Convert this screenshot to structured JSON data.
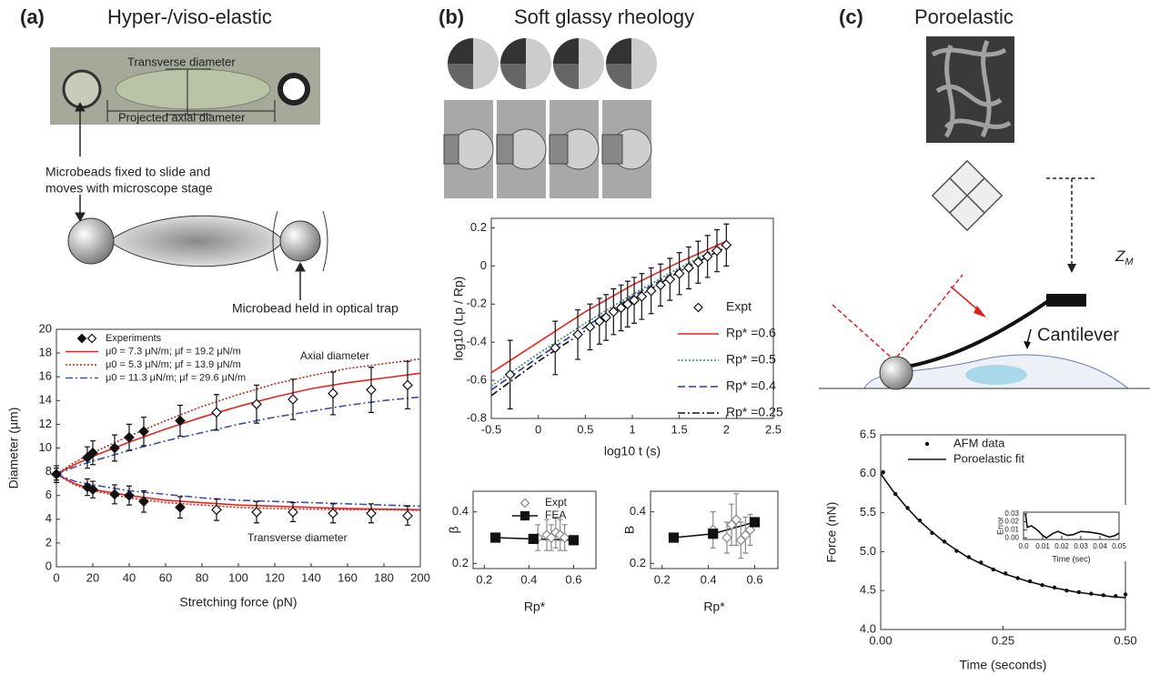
{
  "panels": [
    {
      "label": "(a)",
      "title": "Hyper-/viso-elastic"
    },
    {
      "label": "(b)",
      "title": "Soft glassy rheology"
    },
    {
      "label": "(c)",
      "title": "Poroelastic"
    }
  ],
  "annotations": {
    "transverse": "Transverse diameter",
    "projected": "Projected axial diameter",
    "beads_fixed_1": "Microbeads fixed to slide and",
    "beads_fixed_2": "moves with microscope stage",
    "bead_trap": "Microbead held in optical trap",
    "zm": "Z",
    "zm_sub": "M",
    "cantilever": "Cantilever"
  },
  "chart_data": [
    {
      "type": "line",
      "xlabel": "Stretching force (pN)",
      "ylabel": "Diameter (µm)",
      "xlim": [
        0,
        200
      ],
      "xticks": [
        0,
        20,
        40,
        60,
        80,
        100,
        120,
        140,
        160,
        180,
        200
      ],
      "ylim": [
        0,
        20
      ],
      "yticks": [
        0,
        2,
        4,
        6,
        8,
        10,
        12,
        14,
        16,
        18,
        20
      ],
      "annotations": [
        "Axial diameter",
        "Transverse diameter"
      ],
      "series": [
        {
          "name": "Experiments",
          "color": "#111111",
          "marker": "diamond",
          "fill": "filled",
          "x": [
            0,
            17,
            20,
            32,
            40,
            48,
            68
          ],
          "values": [
            7.8,
            9.2,
            9.6,
            10.0,
            10.9,
            11.4,
            12.3
          ],
          "errors": [
            0.7,
            0.9,
            1.0,
            1.1,
            1.1,
            1.2,
            1.3
          ]
        },
        {
          "color": "#111111",
          "marker": "diamond",
          "fill": "open",
          "x": [
            88,
            110,
            130,
            152,
            173,
            193
          ],
          "values": [
            13.0,
            13.7,
            14.1,
            14.6,
            14.9,
            15.3
          ],
          "errors": [
            1.5,
            1.6,
            1.7,
            1.8,
            1.9,
            2.0
          ]
        },
        {
          "color": "#111111",
          "marker": "diamond",
          "fill": "filled",
          "x": [
            0,
            17,
            20,
            32,
            40,
            48,
            68
          ],
          "values": [
            7.8,
            6.7,
            6.5,
            6.1,
            6.0,
            5.5,
            5.0
          ],
          "errors": [
            0.5,
            0.7,
            0.7,
            0.8,
            0.8,
            0.9,
            0.9
          ]
        },
        {
          "color": "#111111",
          "marker": "diamond",
          "fill": "open",
          "x": [
            88,
            110,
            130,
            152,
            173,
            193
          ],
          "values": [
            4.8,
            4.6,
            4.6,
            4.5,
            4.5,
            4.3
          ],
          "errors": [
            0.9,
            0.9,
            0.8,
            0.8,
            0.8,
            0.8
          ]
        },
        {
          "name": "μ0 = 7.3 μN/m; μf = 19.2 μN/m",
          "color": "#e8231f",
          "dash": "solid",
          "marker": "none",
          "x": [
            0,
            10,
            20,
            40,
            60,
            80,
            100,
            120,
            140,
            160,
            180,
            200
          ],
          "values": [
            7.8,
            8.6,
            9.3,
            10.5,
            11.6,
            12.6,
            13.5,
            14.3,
            15.0,
            15.5,
            15.9,
            16.3
          ]
        },
        {
          "name": "μ0 = 5.3 μN/m; μf = 13.9 μN/m",
          "color": "#c0261c",
          "dash": "dotted",
          "marker": "none",
          "x": [
            0,
            10,
            20,
            40,
            60,
            80,
            100,
            120,
            140,
            160,
            180,
            200
          ],
          "values": [
            7.8,
            8.8,
            9.6,
            11.0,
            12.3,
            13.5,
            14.5,
            15.4,
            16.1,
            16.7,
            17.1,
            17.5
          ]
        },
        {
          "name": "μ0 = 11.3 μN/m; μf = 29.6 μN/m",
          "color": "#3b4fb0",
          "dash": "dashdot",
          "marker": "none",
          "x": [
            0,
            10,
            20,
            40,
            60,
            80,
            100,
            120,
            140,
            160,
            180,
            200
          ],
          "values": [
            7.8,
            8.4,
            8.9,
            9.8,
            10.6,
            11.3,
            12.0,
            12.6,
            13.1,
            13.6,
            14.0,
            14.3
          ]
        },
        {
          "color": "#e8231f",
          "dash": "solid",
          "marker": "none",
          "x": [
            0,
            10,
            20,
            40,
            60,
            80,
            100,
            120,
            140,
            160,
            180,
            200
          ],
          "values": [
            7.8,
            7.0,
            6.5,
            6.0,
            5.6,
            5.4,
            5.2,
            5.1,
            5.0,
            4.9,
            4.85,
            4.8
          ]
        },
        {
          "color": "#c0261c",
          "dash": "dotted",
          "marker": "none",
          "x": [
            0,
            10,
            20,
            40,
            60,
            80,
            100,
            120,
            140,
            160,
            180,
            200
          ],
          "values": [
            7.8,
            6.9,
            6.4,
            5.8,
            5.4,
            5.2,
            5.0,
            4.9,
            4.85,
            4.8,
            4.8,
            4.75
          ]
        },
        {
          "color": "#3b4fb0",
          "dash": "dashdot",
          "marker": "none",
          "x": [
            0,
            10,
            20,
            40,
            60,
            80,
            100,
            120,
            140,
            160,
            180,
            200
          ],
          "values": [
            7.8,
            7.2,
            6.9,
            6.4,
            6.1,
            5.8,
            5.6,
            5.5,
            5.4,
            5.3,
            5.2,
            5.1
          ]
        }
      ]
    },
    {
      "type": "line",
      "xlabel": "log10 t (s)",
      "ylabel": "log10 (Lp / Rp)",
      "xlim": [
        -0.5,
        2.5
      ],
      "xticks": [
        -0.5,
        0,
        0.5,
        1,
        1.5,
        2,
        2.5
      ],
      "ylim": [
        -0.8,
        0.25
      ],
      "yticks": [
        -0.8,
        -0.6,
        -0.4,
        -0.2,
        0,
        0.2
      ],
      "series": [
        {
          "name": "Expt",
          "color": "#111111",
          "marker": "diamond",
          "fill": "open",
          "x": [
            -0.3,
            0.18,
            0.42,
            0.55,
            0.65,
            0.72,
            0.8,
            0.88,
            0.95,
            1.02,
            1.1,
            1.2,
            1.3,
            1.4,
            1.5,
            1.6,
            1.7,
            1.8,
            1.9,
            2.0
          ],
          "values": [
            -0.57,
            -0.43,
            -0.36,
            -0.32,
            -0.29,
            -0.27,
            -0.24,
            -0.22,
            -0.2,
            -0.18,
            -0.16,
            -0.13,
            -0.1,
            -0.07,
            -0.04,
            -0.01,
            0.02,
            0.05,
            0.08,
            0.11
          ],
          "errors": [
            0.18,
            0.14,
            0.13,
            0.12,
            0.12,
            0.12,
            0.12,
            0.12,
            0.12,
            0.12,
            0.12,
            0.12,
            0.11,
            0.11,
            0.11,
            0.11,
            0.11,
            0.11,
            0.11,
            0.11
          ]
        },
        {
          "name": "Rp* =0.6",
          "color": "#e8231f",
          "dash": "solid",
          "marker": "none",
          "x": [
            -0.5,
            0,
            0.5,
            1,
            1.5,
            2
          ],
          "values": [
            -0.56,
            -0.4,
            -0.24,
            -0.1,
            0.02,
            0.13
          ]
        },
        {
          "name": "Rp* =0.5",
          "color": "#3a8a6a",
          "dash": "dotted",
          "marker": "none",
          "x": [
            -0.5,
            0,
            0.5,
            1,
            1.5,
            2
          ],
          "values": [
            -0.63,
            -0.46,
            -0.3,
            -0.15,
            -0.01,
            0.12
          ]
        },
        {
          "name": "Rp* =0.4",
          "color": "#2a3a9a",
          "dash": "dashed",
          "marker": "none",
          "x": [
            -0.5,
            0,
            0.5,
            1,
            1.5,
            2
          ],
          "values": [
            -0.65,
            -0.48,
            -0.32,
            -0.16,
            -0.02,
            0.11
          ]
        },
        {
          "name": "Rp* =0.25",
          "color": "#111111",
          "dash": "dashdot",
          "marker": "none",
          "x": [
            -0.5,
            0,
            0.5,
            1,
            1.5,
            2
          ],
          "values": [
            -0.68,
            -0.5,
            -0.34,
            -0.18,
            -0.03,
            0.1
          ]
        }
      ]
    },
    {
      "type": "line",
      "xlabel": "Rp*",
      "ylabel": "β",
      "xlim": [
        0.15,
        0.7
      ],
      "xticks": [
        0.2,
        0.4,
        0.6
      ],
      "ylim": [
        0.18,
        0.48
      ],
      "yticks": [
        0.2,
        0.4
      ],
      "series": [
        {
          "name": "Expt",
          "color": "#888888",
          "marker": "diamond",
          "fill": "open",
          "x": [
            0.44,
            0.48,
            0.5,
            0.52,
            0.54,
            0.56
          ],
          "values": [
            0.3,
            0.31,
            0.3,
            0.32,
            0.31,
            0.3
          ],
          "errors": [
            0.05,
            0.06,
            0.05,
            0.06,
            0.06,
            0.05
          ]
        },
        {
          "name": "FEA",
          "color": "#111111",
          "dash": "solid",
          "marker": "square",
          "fill": "filled",
          "x": [
            0.25,
            0.42,
            0.6
          ],
          "values": [
            0.3,
            0.295,
            0.29
          ]
        }
      ]
    },
    {
      "type": "line",
      "xlabel": "Rp*",
      "ylabel": "B",
      "xlim": [
        0.15,
        0.7
      ],
      "xticks": [
        0.2,
        0.4,
        0.6
      ],
      "ylim": [
        0.18,
        0.48
      ],
      "yticks": [
        0.2,
        0.4
      ],
      "series": [
        {
          "color": "#888888",
          "marker": "diamond",
          "fill": "open",
          "x": [
            0.42,
            0.48,
            0.5,
            0.52,
            0.54,
            0.56,
            0.58
          ],
          "values": [
            0.33,
            0.3,
            0.35,
            0.37,
            0.29,
            0.31,
            0.33
          ],
          "errors": [
            0.07,
            0.06,
            0.08,
            0.1,
            0.07,
            0.07,
            0.06
          ]
        },
        {
          "color": "#111111",
          "dash": "solid",
          "marker": "square",
          "fill": "filled",
          "x": [
            0.25,
            0.42,
            0.6
          ],
          "values": [
            0.3,
            0.315,
            0.36
          ]
        }
      ]
    },
    {
      "type": "line",
      "xlabel": "Time (seconds)",
      "ylabel": "Force (nN)",
      "xlim": [
        0,
        0.5
      ],
      "xticks": [
        {
          "value": 0,
          "label": "0.00"
        },
        0.25,
        {
          "value": 0.5,
          "label": "0.50"
        }
      ],
      "ylim": [
        4,
        6.5
      ],
      "yticks": [
        {
          "value": 4,
          "label": "4.0"
        },
        4.5,
        {
          "value": 5,
          "label": "5.0"
        },
        5.5,
        {
          "value": 6,
          "label": "6.0"
        },
        6.5
      ],
      "series": [
        {
          "name": "AFM data",
          "color": "#111111",
          "marker": "dot",
          "fill": "filled",
          "x": [
            0.005,
            0.03,
            0.055,
            0.08,
            0.105,
            0.13,
            0.155,
            0.18,
            0.205,
            0.23,
            0.255,
            0.28,
            0.305,
            0.33,
            0.355,
            0.38,
            0.405,
            0.43,
            0.455,
            0.48,
            0.5
          ],
          "values": [
            6.02,
            5.74,
            5.56,
            5.4,
            5.24,
            5.13,
            5.01,
            4.93,
            4.86,
            4.77,
            4.72,
            4.66,
            4.62,
            4.57,
            4.54,
            4.5,
            4.48,
            4.46,
            4.44,
            4.43,
            4.45
          ]
        },
        {
          "name": "Poroelastic fit",
          "color": "#111111",
          "dash": "solid",
          "marker": "none",
          "x": [
            0,
            0.025,
            0.05,
            0.075,
            0.1,
            0.125,
            0.15,
            0.175,
            0.2,
            0.225,
            0.25,
            0.275,
            0.3,
            0.325,
            0.35,
            0.375,
            0.4,
            0.425,
            0.45,
            0.475,
            0.5
          ],
          "values": [
            6.0,
            5.78,
            5.59,
            5.42,
            5.28,
            5.15,
            5.04,
            4.94,
            4.86,
            4.79,
            4.72,
            4.67,
            4.62,
            4.58,
            4.54,
            4.51,
            4.48,
            4.46,
            4.44,
            4.42,
            4.41
          ]
        }
      ]
    },
    {
      "type": "line",
      "xlabel": "Time (sec)",
      "ylabel": "Error",
      "xlim": [
        0,
        0.05
      ],
      "xticks": [
        {
          "value": 0,
          "label": "0.0"
        },
        0.01,
        0.02,
        0.03,
        0.04,
        0.05
      ],
      "ylim": [
        -0.002,
        0.032
      ],
      "yticks": [
        {
          "value": 0,
          "label": "0.00"
        },
        0.01,
        0.02,
        0.03
      ],
      "series": [
        {
          "color": "#111111",
          "dash": "solid",
          "marker": "none",
          "x": [
            0.001,
            0.002,
            0.004,
            0.006,
            0.008,
            0.01,
            0.012,
            0.015,
            0.018,
            0.02,
            0.023,
            0.026,
            0.03,
            0.035,
            0.04,
            0.045,
            0.048,
            0.05
          ],
          "values": [
            0.03,
            0.013,
            0.015,
            0.012,
            0.008,
            0.003,
            0.0,
            0.005,
            0.008,
            0.006,
            0.003,
            0.004,
            0.008,
            0.007,
            0.005,
            0.001,
            0.003,
            0.006
          ]
        }
      ]
    }
  ]
}
